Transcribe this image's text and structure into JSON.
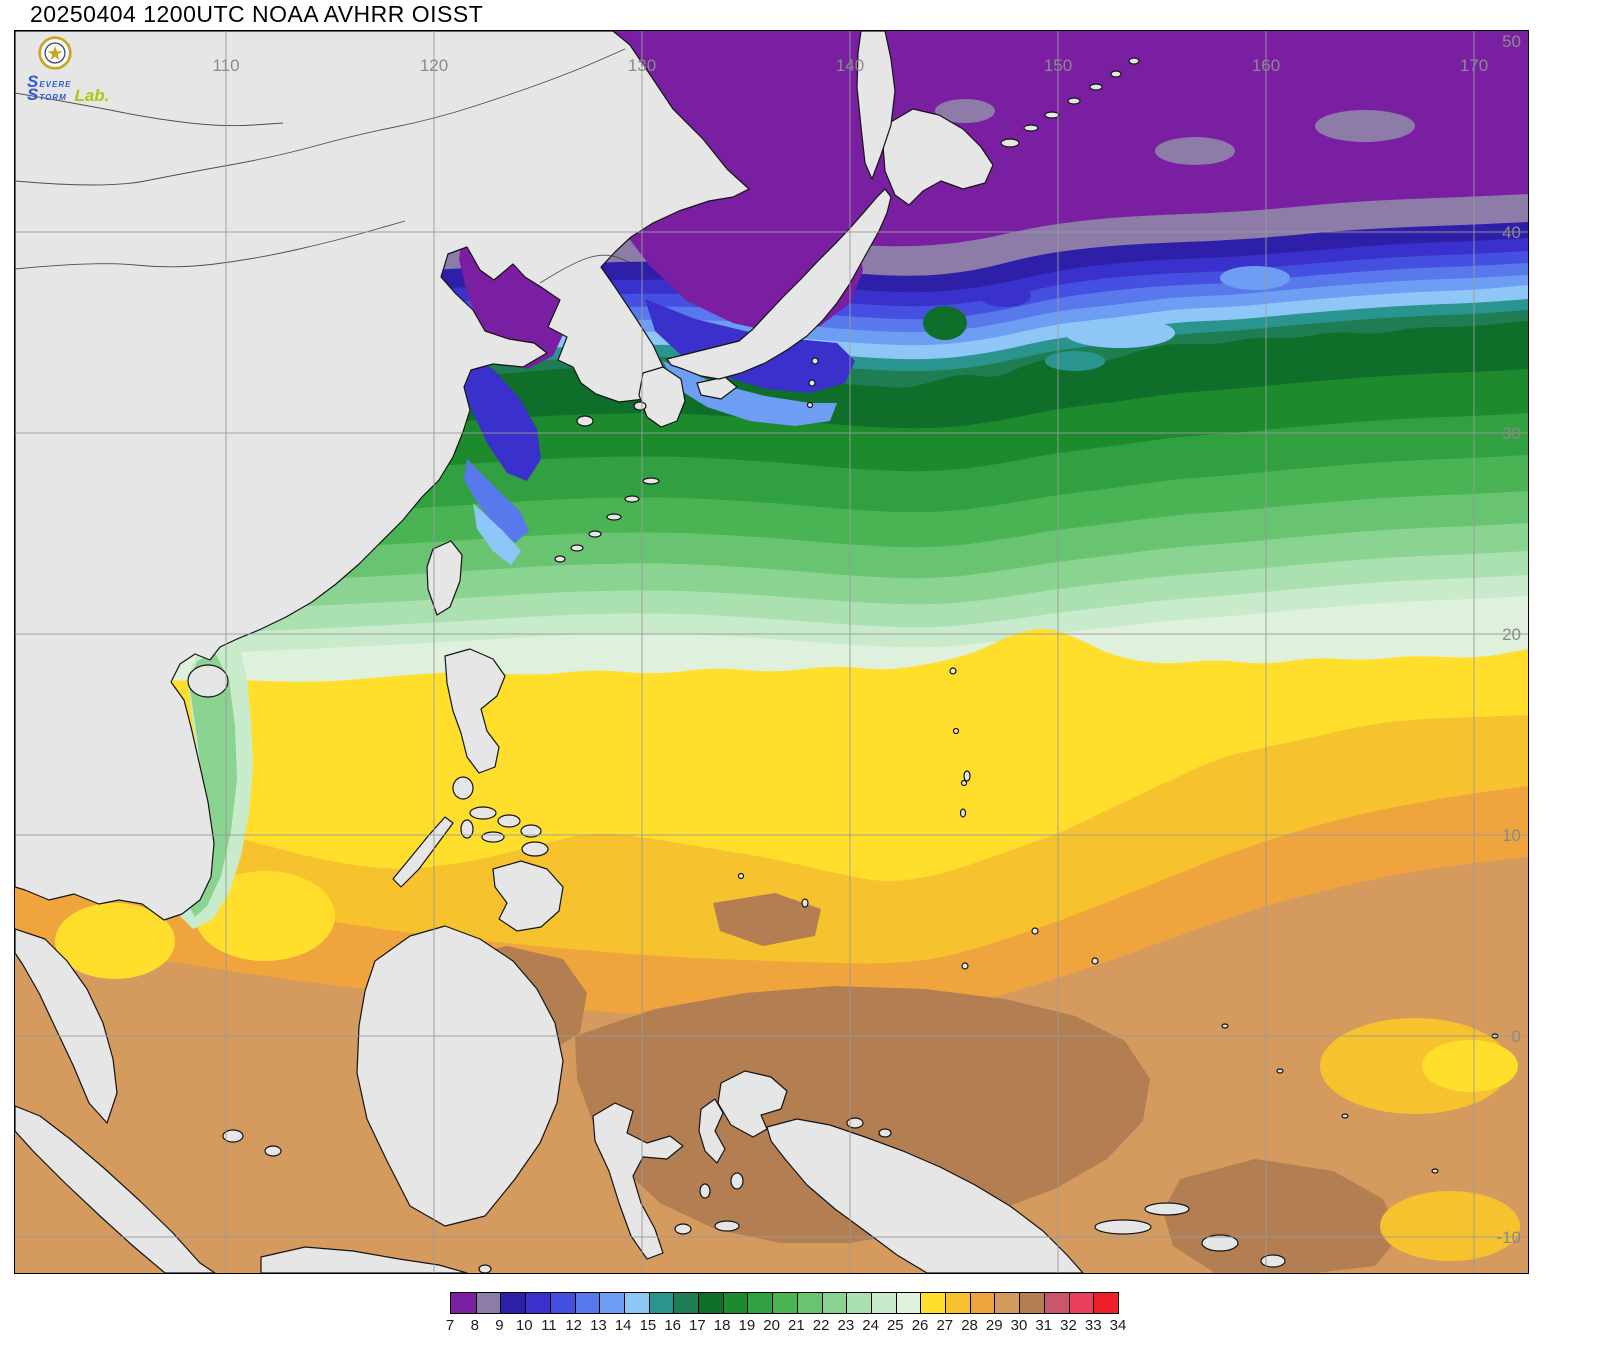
{
  "title": "20250404 1200UTC NOAA AVHRR OISST",
  "logo": {
    "word1": "SEVERE",
    "word2": "STORM",
    "suffix": "Lab."
  },
  "axes": {
    "lon_labels": [
      "110",
      "120",
      "130",
      "140",
      "150",
      "160",
      "170"
    ],
    "lat_labels": [
      "50",
      "40",
      "30",
      "20",
      "10",
      "0",
      "-10"
    ]
  },
  "colorbar": {
    "values": [
      "7",
      "8",
      "9",
      "10",
      "11",
      "12",
      "13",
      "14",
      "15",
      "16",
      "17",
      "18",
      "19",
      "20",
      "21",
      "22",
      "23",
      "24",
      "25",
      "26",
      "27",
      "28",
      "29",
      "30",
      "31",
      "32",
      "33",
      "34"
    ],
    "colors": [
      "#7B1FA2",
      "#8D7BA8",
      "#2E1FA8",
      "#3A30CC",
      "#4650E0",
      "#5878EC",
      "#6E9EF4",
      "#8FC6F8",
      "#2A958F",
      "#1E7D52",
      "#0E6E2A",
      "#1E8A2E",
      "#30A040",
      "#4AB455",
      "#68C470",
      "#8AD390",
      "#ABE0B0",
      "#C8EBCB",
      "#DFF0DC",
      "#FFDF2B",
      "#F6C32E",
      "#EFA43E",
      "#D49A5E",
      "#B27E52",
      "#C9566B",
      "#E8405A",
      "#F01E28"
    ]
  },
  "colors": {
    "land": "#E6E6E6",
    "coast": "#141414",
    "grid": "#9A9A9A",
    "geo_label": "#8A8A8A",
    "title": "#000000"
  }
}
